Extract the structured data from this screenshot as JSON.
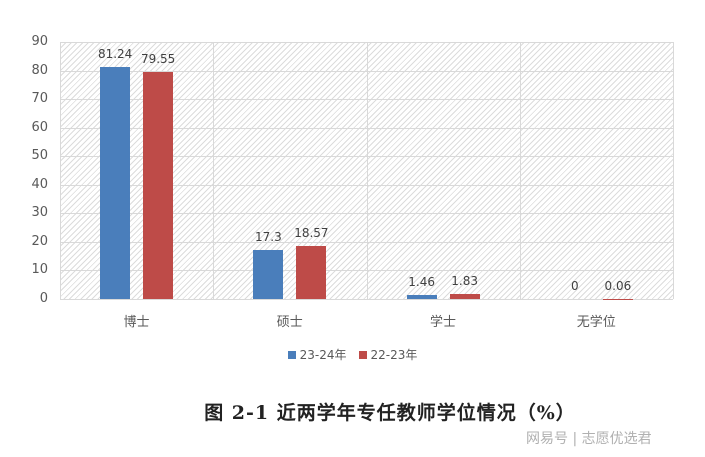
{
  "chart_data": {
    "type": "bar",
    "title": "图 2-1   近两学年专任教师学位情况（%）",
    "categories": [
      "博士",
      "硕士",
      "学士",
      "无学位"
    ],
    "series": [
      {
        "name": "23-24年",
        "color": "#4A7EBB",
        "values": [
          81.24,
          17.3,
          1.46,
          0
        ]
      },
      {
        "name": "22-23年",
        "color": "#BE4B48",
        "values": [
          79.55,
          18.57,
          1.83,
          0.06
        ]
      }
    ],
    "value_labels": [
      [
        "81.24",
        "17.3",
        "1.46",
        "0"
      ],
      [
        "79.55",
        "18.57",
        "1.83",
        "0.06"
      ]
    ],
    "xlabel": "",
    "ylabel": "",
    "ylim": [
      0,
      90
    ],
    "yticks": [
      "0",
      "10",
      "20",
      "30",
      "40",
      "50",
      "60",
      "70",
      "80",
      "90"
    ],
    "grid": true,
    "legend_position": "bottom"
  },
  "caption": "图 2-1   近两学年专任教师学位情况（%）",
  "watermark": "网易号 | 志愿优选君"
}
